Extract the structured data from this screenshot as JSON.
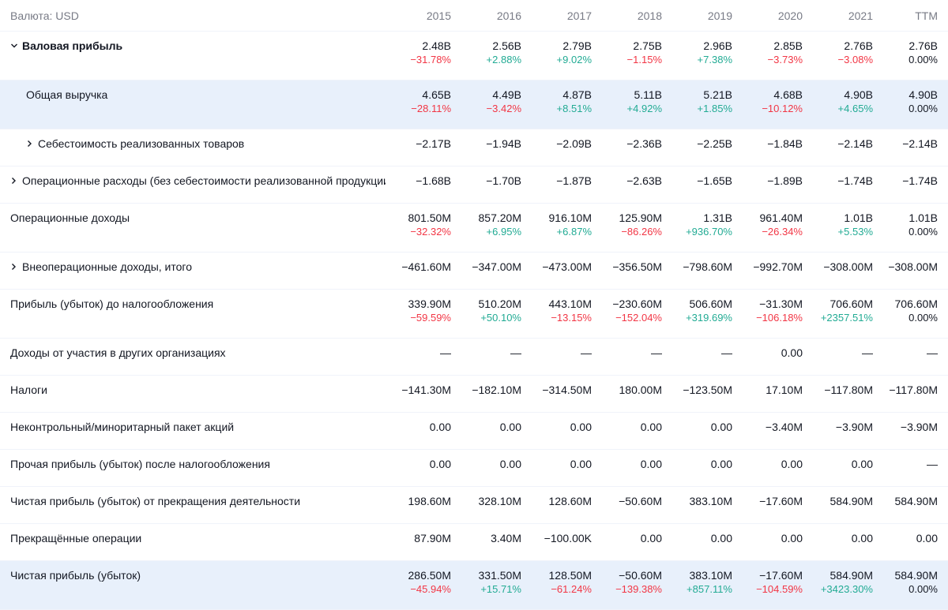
{
  "header": {
    "currency_label": "Валюта: USD",
    "years": [
      "2015",
      "2016",
      "2017",
      "2018",
      "2019",
      "2020",
      "2021",
      "TTM"
    ]
  },
  "rows": [
    {
      "label": "Валовая прибыль",
      "expander": "down",
      "bold": true,
      "highlight": false,
      "indent": 0,
      "values": [
        "2.48B",
        "2.56B",
        "2.79B",
        "2.75B",
        "2.96B",
        "2.85B",
        "2.76B",
        "2.76B"
      ],
      "changes": [
        "−31.78%",
        "+2.88%",
        "+9.02%",
        "−1.15%",
        "+7.38%",
        "−3.73%",
        "−3.08%",
        "0.00%"
      ]
    },
    {
      "label": "Общая выручка",
      "expander": "",
      "bold": false,
      "highlight": true,
      "indent": 1,
      "values": [
        "4.65B",
        "4.49B",
        "4.87B",
        "5.11B",
        "5.21B",
        "4.68B",
        "4.90B",
        "4.90B"
      ],
      "changes": [
        "−28.11%",
        "−3.42%",
        "+8.51%",
        "+4.92%",
        "+1.85%",
        "−10.12%",
        "+4.65%",
        "0.00%"
      ]
    },
    {
      "label": "Себестоимость реализованных товаров",
      "expander": "right",
      "bold": false,
      "highlight": false,
      "indent": 1,
      "values": [
        "−2.17B",
        "−1.94B",
        "−2.09B",
        "−2.36B",
        "−2.25B",
        "−1.84B",
        "−2.14B",
        "−2.14B"
      ],
      "changes": []
    },
    {
      "label": "Операционные расходы (без себестоимости реализованной продукции)",
      "expander": "right",
      "bold": false,
      "highlight": false,
      "indent": 0,
      "values": [
        "−1.68B",
        "−1.70B",
        "−1.87B",
        "−2.63B",
        "−1.65B",
        "−1.89B",
        "−1.74B",
        "−1.74B"
      ],
      "changes": []
    },
    {
      "label": "Операционные доходы",
      "expander": "",
      "bold": false,
      "highlight": false,
      "indent": 0,
      "values": [
        "801.50M",
        "857.20M",
        "916.10M",
        "125.90M",
        "1.31B",
        "961.40M",
        "1.01B",
        "1.01B"
      ],
      "changes": [
        "−32.32%",
        "+6.95%",
        "+6.87%",
        "−86.26%",
        "+936.70%",
        "−26.34%",
        "+5.53%",
        "0.00%"
      ]
    },
    {
      "label": "Внеоперационные доходы, итого",
      "expander": "right",
      "bold": false,
      "highlight": false,
      "indent": 0,
      "values": [
        "−461.60M",
        "−347.00M",
        "−473.00M",
        "−356.50M",
        "−798.60M",
        "−992.70M",
        "−308.00M",
        "−308.00M"
      ],
      "changes": []
    },
    {
      "label": "Прибыль (убыток) до налогообложения",
      "expander": "",
      "bold": false,
      "highlight": false,
      "indent": 0,
      "values": [
        "339.90M",
        "510.20M",
        "443.10M",
        "−230.60M",
        "506.60M",
        "−31.30M",
        "706.60M",
        "706.60M"
      ],
      "changes": [
        "−59.59%",
        "+50.10%",
        "−13.15%",
        "−152.04%",
        "+319.69%",
        "−106.18%",
        "+2357.51%",
        "0.00%"
      ]
    },
    {
      "label": "Доходы от участия в других организациях",
      "expander": "",
      "bold": false,
      "highlight": false,
      "indent": 0,
      "values": [
        "—",
        "—",
        "—",
        "—",
        "—",
        "0.00",
        "—",
        "—"
      ],
      "changes": []
    },
    {
      "label": "Налоги",
      "expander": "",
      "bold": false,
      "highlight": false,
      "indent": 0,
      "values": [
        "−141.30M",
        "−182.10M",
        "−314.50M",
        "180.00M",
        "−123.50M",
        "17.10M",
        "−117.80M",
        "−117.80M"
      ],
      "changes": []
    },
    {
      "label": "Неконтрольный/миноритарный пакет акций",
      "expander": "",
      "bold": false,
      "highlight": false,
      "indent": 0,
      "values": [
        "0.00",
        "0.00",
        "0.00",
        "0.00",
        "0.00",
        "−3.40M",
        "−3.90M",
        "−3.90M"
      ],
      "changes": []
    },
    {
      "label": "Прочая прибыль (убыток) после налогообложения",
      "expander": "",
      "bold": false,
      "highlight": false,
      "indent": 0,
      "values": [
        "0.00",
        "0.00",
        "0.00",
        "0.00",
        "0.00",
        "0.00",
        "0.00",
        "—"
      ],
      "changes": []
    },
    {
      "label": "Чистая прибыль (убыток) от прекращения деятельности",
      "expander": "",
      "bold": false,
      "highlight": false,
      "indent": 0,
      "values": [
        "198.60M",
        "328.10M",
        "128.60M",
        "−50.60M",
        "383.10M",
        "−17.60M",
        "584.90M",
        "584.90M"
      ],
      "changes": []
    },
    {
      "label": "Прекращённые операции",
      "expander": "",
      "bold": false,
      "highlight": false,
      "indent": 0,
      "values": [
        "87.90M",
        "3.40M",
        "−100.00K",
        "0.00",
        "0.00",
        "0.00",
        "0.00",
        "0.00"
      ],
      "changes": []
    },
    {
      "label": "Чистая прибыль (убыток)",
      "expander": "",
      "bold": false,
      "highlight": true,
      "indent": 0,
      "values": [
        "286.50M",
        "331.50M",
        "128.50M",
        "−50.60M",
        "383.10M",
        "−17.60M",
        "584.90M",
        "584.90M"
      ],
      "changes": [
        "−45.94%",
        "+15.71%",
        "−61.24%",
        "−139.38%",
        "+857.11%",
        "−104.59%",
        "+3423.30%",
        "0.00%"
      ]
    }
  ],
  "colors": {
    "negative": "#f23645",
    "positive": "#22ab94",
    "highlight_bg": "#e8f0fb",
    "muted": "#787b86"
  },
  "icons": {
    "expand_down": "chevron-down-icon",
    "expand_right": "chevron-right-icon"
  }
}
